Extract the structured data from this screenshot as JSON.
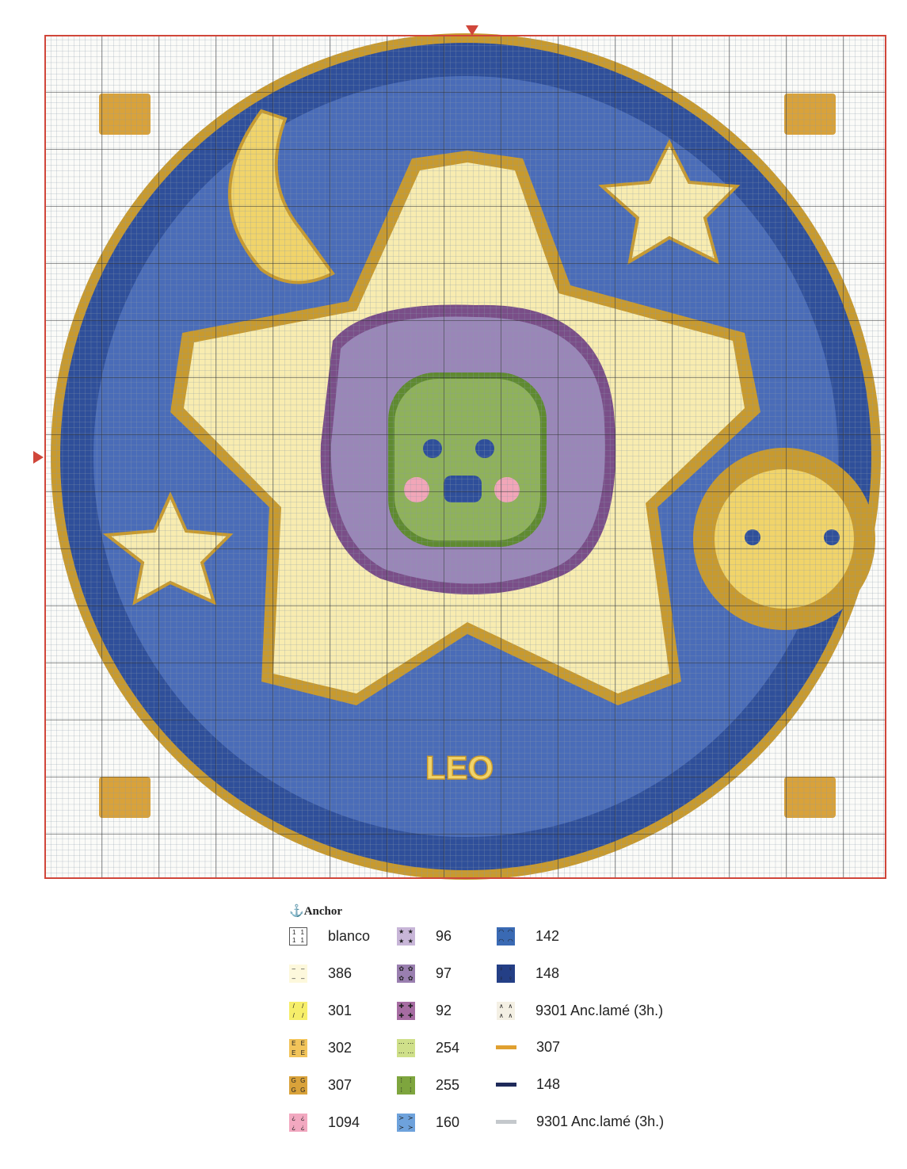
{
  "chart": {
    "word": "LEO",
    "colors": {
      "background": "#fbfbf8",
      "grid": "#7a8a9a",
      "border": "#d0463a",
      "ring": "#c89a2e",
      "disc_outer": "#2f4f9a",
      "disc_inner": "#4a6cb8",
      "star_cream": "#f8ecb0",
      "star_yellow": "#f1d46a",
      "lion_green": "#8fb25a",
      "mane_purple": "#9a86b8",
      "mane_dark": "#7a4e88",
      "cheek_pink": "#f2a6b8",
      "marker": "#d0463a"
    }
  },
  "legend": {
    "brand": "Anchor",
    "items": [
      {
        "label": "blanco",
        "symbol": "1",
        "bg": "#ffffff",
        "border": "#555"
      },
      {
        "label": "386",
        "symbol": "–",
        "bg": "#fdf8dc"
      },
      {
        "label": "301",
        "symbol": "/",
        "bg": "#f6ee6a"
      },
      {
        "label": "302",
        "symbol": "E",
        "bg": "#f2c45a"
      },
      {
        "label": "307",
        "symbol": "G",
        "bg": "#d9a23a"
      },
      {
        "label": "1094",
        "symbol": "¿",
        "bg": "#f2a8c0"
      },
      {
        "label": "96",
        "symbol": "★",
        "bg": "#c8b6d8"
      },
      {
        "label": "97",
        "symbol": "✿",
        "bg": "#9a7fb0"
      },
      {
        "label": "92",
        "symbol": "✚",
        "bg": "#a66ca2"
      },
      {
        "label": "254",
        "symbol": "⋯",
        "bg": "#cfe08a"
      },
      {
        "label": "255",
        "symbol": "⁞",
        "bg": "#7ea53e"
      },
      {
        "label": "160",
        "symbol": "≻",
        "bg": "#6ea2dc"
      },
      {
        "label": "142",
        "symbol": "◠",
        "bg": "#3a6ab4"
      },
      {
        "label": "148",
        "symbol": "♀",
        "bg": "#243f86"
      },
      {
        "label": "9301 Anc.lamé (3h.)",
        "symbol": "∧",
        "bg": "#f4f0e4"
      },
      {
        "label": "307",
        "line": "#e0a030"
      },
      {
        "label": "148",
        "line": "#1f2a5a"
      },
      {
        "label": "9301 Anc.lamé (3h.)",
        "line": "#c4c8cc"
      }
    ]
  }
}
